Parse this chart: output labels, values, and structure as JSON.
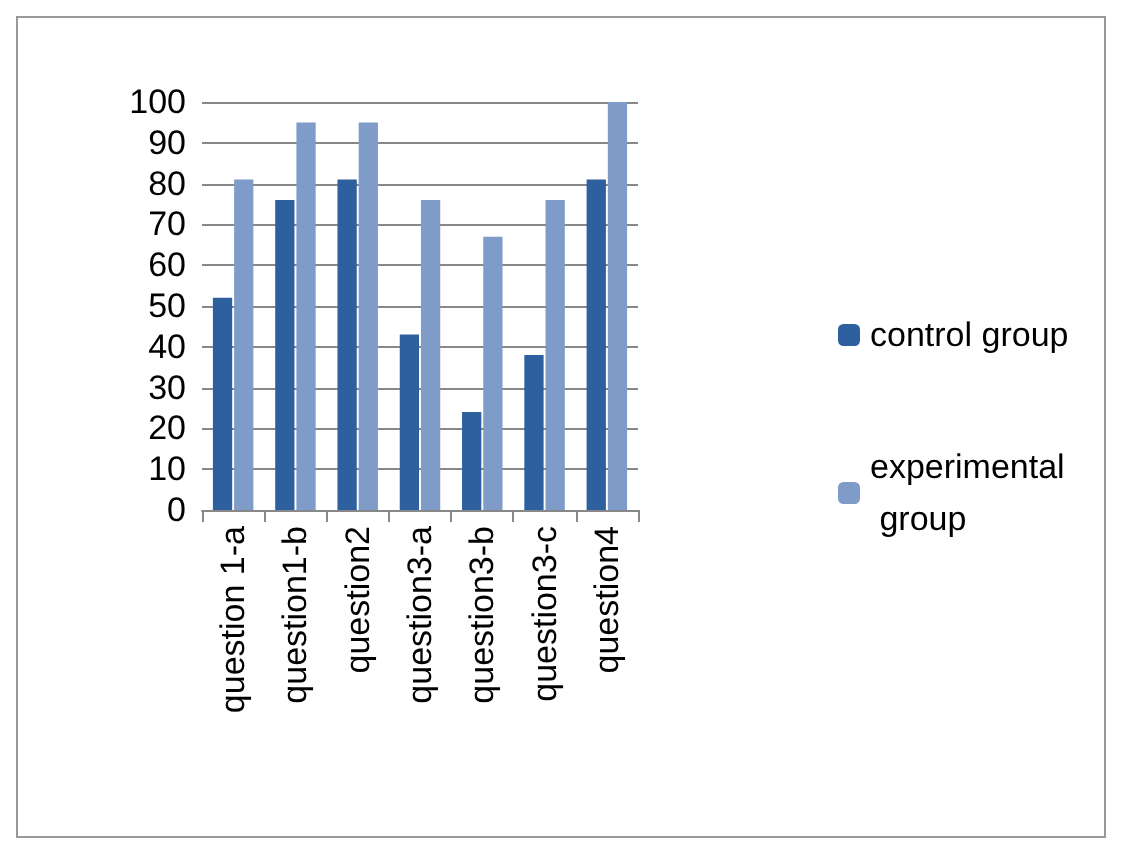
{
  "chart_data": {
    "type": "bar",
    "categories": [
      "question 1-a",
      "question1-b",
      "question2",
      "question3-a",
      "question3-b",
      "question3-c",
      "question4"
    ],
    "series": [
      {
        "name": "control group",
        "color": "#2e5f9e",
        "values": [
          52,
          76,
          81,
          43,
          24,
          38,
          81
        ]
      },
      {
        "name": "experimental group",
        "color": "#7f9cc9",
        "values": [
          81,
          95,
          95,
          76,
          67,
          76,
          100
        ]
      }
    ],
    "ylim": [
      0,
      100
    ],
    "yticks": [
      0,
      10,
      20,
      30,
      40,
      50,
      60,
      70,
      80,
      90,
      100
    ],
    "grid": "y",
    "legend": "right"
  }
}
